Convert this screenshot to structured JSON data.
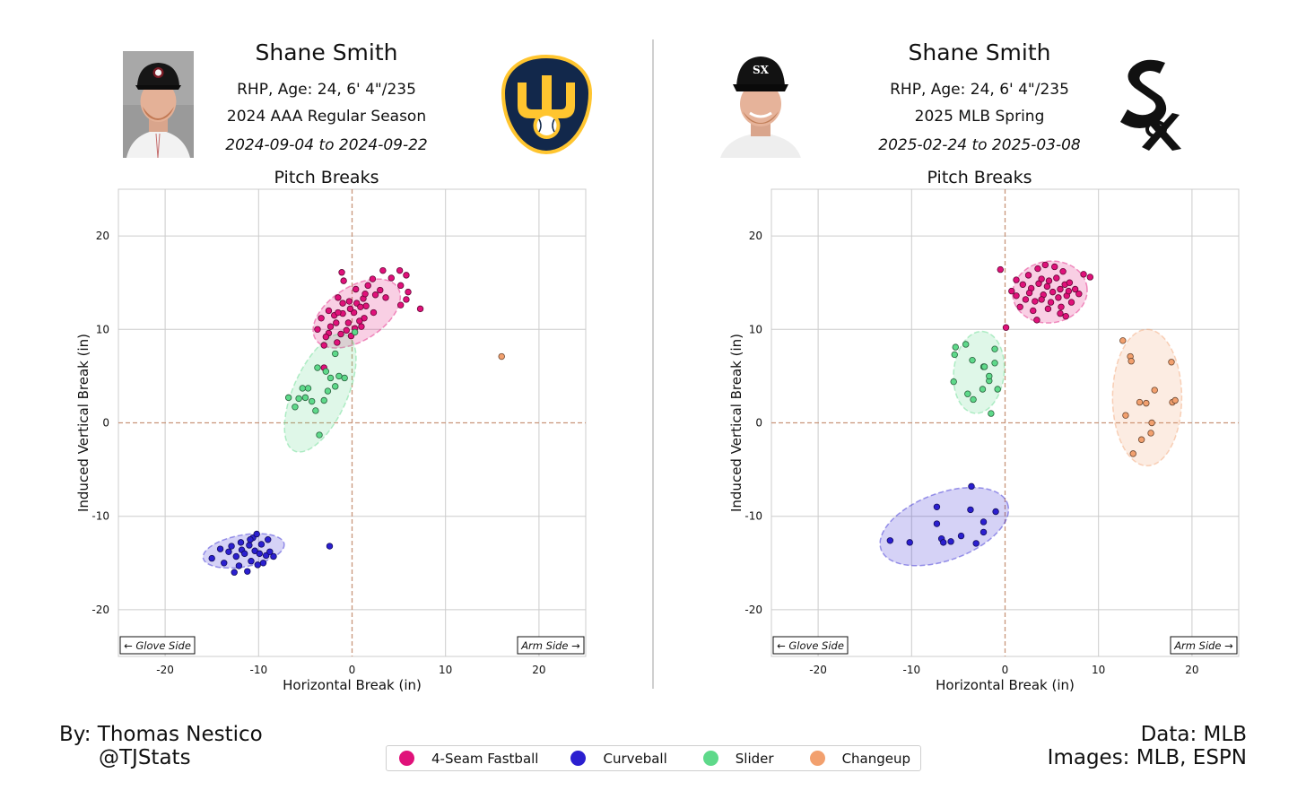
{
  "colors": {
    "fastball": "#e0117a",
    "curveball": "#2b1fd0",
    "slider": "#5ed98a",
    "changeup": "#f2a06e",
    "zero_line": "#c8957a",
    "grid": "#cccccc"
  },
  "panels": [
    {
      "name": "Shane Smith",
      "info": "RHP, Age: 24, 6' 4\"/235",
      "season": "2024 AAA Regular Season",
      "dates": "2024-09-04 to 2024-09-22",
      "plot_title": "Pitch Breaks",
      "headshot_icon": "player-headshot-minor-league",
      "logo_icon": "milwaukee-brewers-glove-logo"
    },
    {
      "name": "Shane Smith",
      "info": "RHP, Age: 24, 6' 4\"/235",
      "season": "2025 MLB Spring",
      "dates": "2025-02-24 to 2025-03-08",
      "plot_title": "Pitch Breaks",
      "headshot_icon": "player-headshot-white-sox",
      "logo_icon": "chicago-white-sox-logo"
    }
  ],
  "chart_data": [
    {
      "type": "scatter",
      "title": "Pitch Breaks",
      "xlabel": "Horizontal Break (in)",
      "ylabel": "Induced Vertical Break (in)",
      "xlim": [
        -25,
        25
      ],
      "ylim": [
        -25,
        25
      ],
      "xticks": [
        -20,
        -10,
        0,
        10,
        20
      ],
      "yticks": [
        -20,
        -10,
        0,
        10,
        20
      ],
      "grid": true,
      "annotations": [
        "← Glove Side",
        "Arm Side →"
      ],
      "series": [
        {
          "name": "4-Seam Fastball",
          "color_key": "fastball",
          "ellipse": {
            "cx": 0.5,
            "cy": 11.7,
            "rx": 5.2,
            "ry": 2.9,
            "angle_deg": 32
          },
          "points": [
            [
              -1.1,
              16.1
            ],
            [
              -0.9,
              15.2
            ],
            [
              0.4,
              14.3
            ],
            [
              1.7,
              14.7
            ],
            [
              3.0,
              14.2
            ],
            [
              5.2,
              14.7
            ],
            [
              4.2,
              15.5
            ],
            [
              5.8,
              15.8
            ],
            [
              5.1,
              16.3
            ],
            [
              3.3,
              16.3
            ],
            [
              2.2,
              15.4
            ],
            [
              6.0,
              14.0
            ],
            [
              5.8,
              13.2
            ],
            [
              7.3,
              12.2
            ],
            [
              5.2,
              12.6
            ],
            [
              3.6,
              13.4
            ],
            [
              2.5,
              13.7
            ],
            [
              1.2,
              13.3
            ],
            [
              1.5,
              12.5
            ],
            [
              0.5,
              12.8
            ],
            [
              -0.3,
              13.0
            ],
            [
              -1.0,
              12.8
            ],
            [
              -1.5,
              13.4
            ],
            [
              -2.5,
              12.0
            ],
            [
              -1.9,
              11.5
            ],
            [
              -1.0,
              11.7
            ],
            [
              0.2,
              11.8
            ],
            [
              1.3,
              11.2
            ],
            [
              2.3,
              11.8
            ],
            [
              0.8,
              10.9
            ],
            [
              -0.4,
              10.7
            ],
            [
              -1.7,
              10.7
            ],
            [
              -2.3,
              10.3
            ],
            [
              -3.3,
              11.2
            ],
            [
              -3.7,
              10.0
            ],
            [
              -2.5,
              9.6
            ],
            [
              -1.2,
              9.5
            ],
            [
              -0.1,
              9.3
            ],
            [
              1.0,
              10.3
            ],
            [
              -1.6,
              8.6
            ],
            [
              -3.0,
              8.3
            ],
            [
              -0.2,
              12.2
            ],
            [
              0.9,
              12.4
            ],
            [
              -2.8,
              9.2
            ],
            [
              -0.6,
              9.9
            ],
            [
              0.3,
              10.1
            ],
            [
              1.4,
              13.8
            ],
            [
              -1.5,
              11.8
            ],
            [
              -3.0,
              5.9
            ]
          ]
        },
        {
          "name": "Curveball",
          "color_key": "curveball",
          "ellipse": {
            "cx": -11.6,
            "cy": -13.7,
            "rx": 4.4,
            "ry": 1.7,
            "angle_deg": 10
          },
          "points": [
            [
              -15.0,
              -14.5
            ],
            [
              -14.1,
              -13.5
            ],
            [
              -13.7,
              -15.0
            ],
            [
              -13.2,
              -13.8
            ],
            [
              -12.9,
              -13.2
            ],
            [
              -12.6,
              -16.0
            ],
            [
              -12.4,
              -14.3
            ],
            [
              -12.1,
              -15.3
            ],
            [
              -11.8,
              -13.6
            ],
            [
              -11.5,
              -14.0
            ],
            [
              -11.9,
              -12.8
            ],
            [
              -11.2,
              -15.9
            ],
            [
              -11.0,
              -13.1
            ],
            [
              -10.8,
              -14.8
            ],
            [
              -10.6,
              -12.3
            ],
            [
              -10.4,
              -13.7
            ],
            [
              -10.1,
              -15.2
            ],
            [
              -9.9,
              -14.0
            ],
            [
              -9.7,
              -13.0
            ],
            [
              -10.2,
              -11.9
            ],
            [
              -9.2,
              -14.2
            ],
            [
              -9.0,
              -12.5
            ],
            [
              -9.5,
              -15.0
            ],
            [
              -10.9,
              -12.5
            ],
            [
              -8.8,
              -13.8
            ],
            [
              -8.4,
              -14.3
            ],
            [
              -2.4,
              -13.2
            ]
          ]
        },
        {
          "name": "Slider",
          "color_key": "slider",
          "ellipse": {
            "cx": -3.4,
            "cy": 3.2,
            "rx": 6.8,
            "ry": 2.9,
            "angle_deg": 66
          },
          "points": [
            [
              -6.8,
              2.7
            ],
            [
              -6.1,
              1.7
            ],
            [
              -5.7,
              2.6
            ],
            [
              -5.3,
              3.7
            ],
            [
              -5.0,
              2.7
            ],
            [
              -4.7,
              3.7
            ],
            [
              -4.3,
              2.3
            ],
            [
              -3.9,
              1.3
            ],
            [
              -3.5,
              -1.3
            ],
            [
              -3.7,
              5.9
            ],
            [
              -2.8,
              5.5
            ],
            [
              -2.6,
              3.4
            ],
            [
              -2.3,
              4.8
            ],
            [
              -1.8,
              3.9
            ],
            [
              -1.4,
              5.0
            ],
            [
              -1.8,
              7.4
            ],
            [
              -3.0,
              2.4
            ],
            [
              -0.8,
              4.8
            ],
            [
              0.3,
              9.7
            ]
          ]
        },
        {
          "name": "Changeup",
          "color_key": "changeup",
          "ellipse": null,
          "points": [
            [
              16.0,
              7.1
            ]
          ]
        }
      ]
    },
    {
      "type": "scatter",
      "title": "Pitch Breaks",
      "xlabel": "Horizontal Break (in)",
      "ylabel": "Induced Vertical Break (in)",
      "xlim": [
        -25,
        25
      ],
      "ylim": [
        -25,
        25
      ],
      "xticks": [
        -20,
        -10,
        0,
        10,
        20
      ],
      "yticks": [
        -20,
        -10,
        0,
        10,
        20
      ],
      "grid": true,
      "annotations": [
        "← Glove Side",
        "Arm Side →"
      ],
      "series": [
        {
          "name": "4-Seam Fastball",
          "color_key": "fastball",
          "ellipse": {
            "cx": 4.8,
            "cy": 14.0,
            "rx": 4.0,
            "ry": 3.3,
            "angle_deg": 8
          },
          "points": [
            [
              -0.5,
              16.4
            ],
            [
              0.7,
              14.1
            ],
            [
              1.2,
              13.6
            ],
            [
              1.6,
              12.4
            ],
            [
              1.9,
              14.8
            ],
            [
              2.2,
              13.2
            ],
            [
              2.5,
              15.8
            ],
            [
              2.8,
              14.4
            ],
            [
              3.0,
              12.0
            ],
            [
              3.2,
              13.0
            ],
            [
              3.5,
              16.5
            ],
            [
              3.6,
              14.9
            ],
            [
              3.9,
              15.4
            ],
            [
              4.1,
              13.7
            ],
            [
              4.3,
              16.9
            ],
            [
              4.5,
              14.6
            ],
            [
              4.7,
              15.2
            ],
            [
              4.9,
              12.9
            ],
            [
              5.1,
              14.0
            ],
            [
              5.3,
              16.7
            ],
            [
              5.5,
              15.5
            ],
            [
              5.7,
              13.4
            ],
            [
              5.9,
              14.3
            ],
            [
              6.0,
              12.4
            ],
            [
              6.2,
              16.2
            ],
            [
              6.4,
              14.8
            ],
            [
              6.6,
              13.6
            ],
            [
              6.9,
              15.0
            ],
            [
              7.1,
              12.9
            ],
            [
              7.5,
              14.3
            ],
            [
              7.9,
              13.8
            ],
            [
              8.4,
              15.9
            ],
            [
              9.1,
              15.6
            ],
            [
              0.1,
              10.2
            ],
            [
              3.4,
              11.0
            ],
            [
              5.9,
              11.7
            ],
            [
              6.5,
              11.4
            ],
            [
              1.2,
              15.3
            ],
            [
              2.6,
              13.9
            ],
            [
              4.6,
              12.2
            ],
            [
              6.8,
              14.1
            ],
            [
              3.9,
              13.2
            ]
          ]
        },
        {
          "name": "Curveball",
          "color_key": "curveball",
          "ellipse": {
            "cx": -6.5,
            "cy": -11.1,
            "rx": 7.2,
            "ry": 3.6,
            "angle_deg": 20
          },
          "points": [
            [
              -12.3,
              -12.6
            ],
            [
              -10.2,
              -12.8
            ],
            [
              -7.3,
              -9.0
            ],
            [
              -7.3,
              -10.8
            ],
            [
              -6.8,
              -12.4
            ],
            [
              -6.6,
              -12.8
            ],
            [
              -5.8,
              -12.7
            ],
            [
              -4.7,
              -12.1
            ],
            [
              -3.6,
              -6.8
            ],
            [
              -3.7,
              -9.3
            ],
            [
              -3.1,
              -12.9
            ],
            [
              -2.3,
              -10.6
            ],
            [
              -2.3,
              -11.7
            ],
            [
              -1.0,
              -9.5
            ]
          ]
        },
        {
          "name": "Slider",
          "color_key": "slider",
          "ellipse": {
            "cx": -2.8,
            "cy": 5.4,
            "rx": 4.4,
            "ry": 2.7,
            "angle_deg": 84
          },
          "points": [
            [
              -5.3,
              8.1
            ],
            [
              -5.4,
              7.3
            ],
            [
              -4.2,
              8.4
            ],
            [
              -3.5,
              6.7
            ],
            [
              -2.3,
              6.0
            ],
            [
              -2.2,
              6.0
            ],
            [
              -1.1,
              7.9
            ],
            [
              -1.1,
              6.4
            ],
            [
              -5.5,
              4.4
            ],
            [
              -4.0,
              3.1
            ],
            [
              -3.4,
              2.5
            ],
            [
              -2.4,
              3.6
            ],
            [
              -1.7,
              4.5
            ],
            [
              -1.7,
              5.0
            ],
            [
              -0.8,
              3.6
            ],
            [
              -1.5,
              1.0
            ]
          ]
        },
        {
          "name": "Changeup",
          "color_key": "changeup",
          "ellipse": {
            "cx": 15.2,
            "cy": 2.7,
            "rx": 7.3,
            "ry": 3.7,
            "angle_deg": 90
          },
          "points": [
            [
              12.6,
              8.8
            ],
            [
              13.4,
              7.1
            ],
            [
              13.5,
              6.6
            ],
            [
              12.9,
              0.8
            ],
            [
              13.7,
              -3.3
            ],
            [
              14.4,
              2.2
            ],
            [
              14.6,
              -1.8
            ],
            [
              15.1,
              2.1
            ],
            [
              15.6,
              -1.1
            ],
            [
              15.7,
              0.0
            ],
            [
              16.0,
              3.5
            ],
            [
              17.8,
              6.5
            ],
            [
              17.9,
              2.2
            ],
            [
              18.2,
              2.4
            ]
          ]
        }
      ]
    }
  ],
  "legend": [
    {
      "label": "4-Seam Fastball",
      "color_key": "fastball"
    },
    {
      "label": "Curveball",
      "color_key": "curveball"
    },
    {
      "label": "Slider",
      "color_key": "slider"
    },
    {
      "label": "Changeup",
      "color_key": "changeup"
    }
  ],
  "footer": {
    "credit_line1": "By: Thomas Nestico",
    "credit_line2": "@TJStats",
    "source_line1": "Data: MLB",
    "source_line2": "Images: MLB, ESPN"
  }
}
